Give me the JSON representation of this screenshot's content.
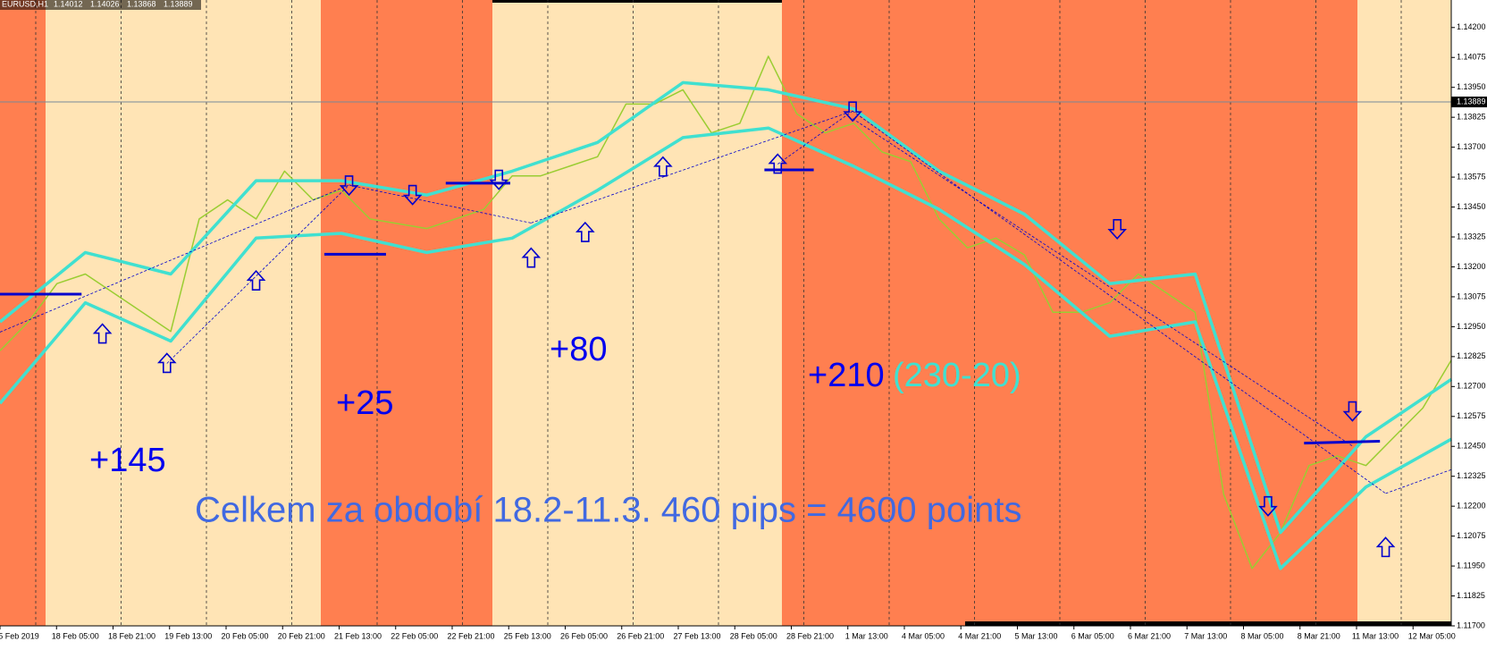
{
  "chart_data": {
    "type": "line",
    "symbol": "EURUSD,H1",
    "ohlc": [
      1.14012,
      1.14026,
      1.13868,
      1.13889
    ],
    "current_price": 1.13889,
    "ylim": [
      1.117,
      1.14315
    ],
    "yticks": [
      {
        "value": 1.142,
        "label": "1.14200"
      },
      {
        "value": 1.14075,
        "label": "1.14075"
      },
      {
        "value": 1.1395,
        "label": "1.13950"
      },
      {
        "value": 1.13825,
        "label": "1.13825"
      },
      {
        "value": 1.137,
        "label": "1.13700"
      },
      {
        "value": 1.13575,
        "label": "1.13575"
      },
      {
        "value": 1.1345,
        "label": "1.13450"
      },
      {
        "value": 1.13325,
        "label": "1.13325"
      },
      {
        "value": 1.132,
        "label": "1.13200"
      },
      {
        "value": 1.13075,
        "label": "1.13075"
      },
      {
        "value": 1.1295,
        "label": "1.12950"
      },
      {
        "value": 1.12825,
        "label": "1.12825"
      },
      {
        "value": 1.127,
        "label": "1.12700"
      },
      {
        "value": 1.12575,
        "label": "1.12575"
      },
      {
        "value": 1.1245,
        "label": "1.12450"
      },
      {
        "value": 1.12325,
        "label": "1.12325"
      },
      {
        "value": 1.122,
        "label": "1.12200"
      },
      {
        "value": 1.12075,
        "label": "1.12075"
      },
      {
        "value": 1.1195,
        "label": "1.11950"
      },
      {
        "value": 1.11825,
        "label": "1.11825"
      },
      {
        "value": 1.117,
        "label": "1.11700"
      }
    ],
    "x_labels": [
      "5 Feb 2019",
      "18 Feb 05:00",
      "18 Feb 21:00",
      "19 Feb 13:00",
      "20 Feb 05:00",
      "20 Feb 21:00",
      "21 Feb 13:00",
      "22 Feb 05:00",
      "22 Feb 21:00",
      "25 Feb 13:00",
      "26 Feb 05:00",
      "26 Feb 21:00",
      "27 Feb 13:00",
      "28 Feb 05:00",
      "28 Feb 21:00",
      "1 Mar 13:00",
      "4 Mar 05:00",
      "4 Mar 21:00",
      "5 Mar 13:00",
      "6 Mar 05:00",
      "6 Mar 21:00",
      "7 Mar 13:00",
      "8 Mar 05:00",
      "8 Mar 21:00",
      "11 Mar 13:00",
      "12 Mar 05:00"
    ],
    "series": [
      {
        "name": "EURUSD",
        "color": "#9acd32",
        "width": 1.5,
        "values": [
          1.1285,
          1.1297,
          1.1313,
          1.1317,
          1.1309,
          1.1301,
          1.1293,
          1.134,
          1.1348,
          1.134,
          1.136,
          1.1348,
          1.1352,
          1.134,
          1.1338,
          1.1336,
          1.134,
          1.1344,
          1.1358,
          1.1358,
          1.1362,
          1.1366,
          1.1388,
          1.1388,
          1.1394,
          1.1376,
          1.138,
          1.1408,
          1.1384,
          1.1376,
          1.138,
          1.1368,
          1.1364,
          1.134,
          1.1328,
          1.1332,
          1.1325,
          1.1301,
          1.1301,
          1.1305,
          1.1317,
          1.1309,
          1.1301,
          1.1225,
          1.1194,
          1.1209,
          1.1237,
          1.1241,
          1.1237,
          1.1249,
          1.1261,
          1.1281
        ]
      },
      {
        "name": "Upper band",
        "color": "#40e0d0",
        "width": 3.5,
        "values": [
          1.1297,
          1.1326,
          1.1317,
          1.1356,
          1.1356,
          1.135,
          1.136,
          1.1372,
          1.1397,
          1.1394,
          1.1386,
          1.136,
          1.1342,
          1.1313,
          1.1317,
          1.1209,
          1.1249,
          1.1273
        ]
      },
      {
        "name": "Lower band",
        "color": "#40e0d0",
        "width": 3.5,
        "values": [
          1.1263,
          1.1305,
          1.1289,
          1.1332,
          1.1334,
          1.1326,
          1.1332,
          1.1352,
          1.1374,
          1.1378,
          1.1362,
          1.1344,
          1.1321,
          1.1291,
          1.1297,
          1.1194,
          1.1228,
          1.1248
        ]
      }
    ],
    "annotations": [
      "+145",
      "+25",
      "+80",
      "+210",
      "(230-20)",
      "Celkem za období 18.2-11.3. 460 pips = 4600 points"
    ]
  }
}
